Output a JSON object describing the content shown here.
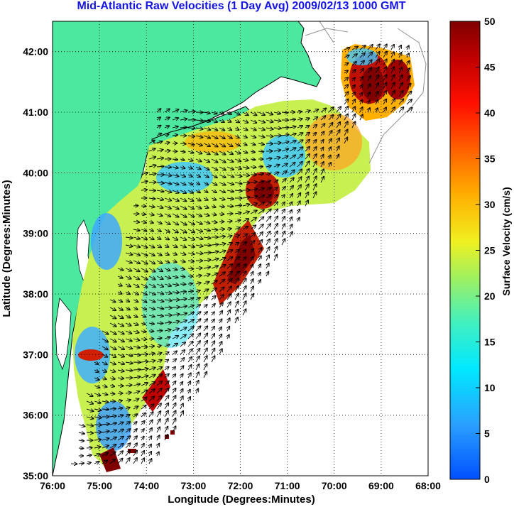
{
  "title": "Mid-Atlantic Raw Velocities (1 Day Avg) 2009/02/13 1000 GMT",
  "axes": {
    "xlabel": "Longitude (Degrees:Minutes)",
    "ylabel": "Latitude (Degrees:Minutes)",
    "x_ticks": [
      "76:00",
      "75:00",
      "74:00",
      "73:00",
      "72:00",
      "71:00",
      "70:00",
      "69:00",
      "68:00"
    ],
    "y_ticks": [
      "35:00",
      "36:00",
      "37:00",
      "38:00",
      "39:00",
      "40:00",
      "41:00",
      "42:00"
    ]
  },
  "colorbar": {
    "label": "Surface Velocity (cm/s)",
    "ticks": [
      "0",
      "5",
      "10",
      "15",
      "20",
      "25",
      "30",
      "35",
      "40",
      "45",
      "50"
    ],
    "min": 0,
    "max": 50
  },
  "colors": {
    "land": "#4de8a0",
    "title": "#1414e6",
    "ocean": "#ffffff"
  },
  "map_extent": {
    "lon_range": [
      -76,
      -68
    ],
    "lat_range": [
      35,
      42.5
    ]
  },
  "coverage_regions": [
    {
      "name": "main-coverage",
      "speed_hint": 22
    },
    {
      "name": "southern-new-england-coverage",
      "speed_hint": 30
    }
  ]
}
